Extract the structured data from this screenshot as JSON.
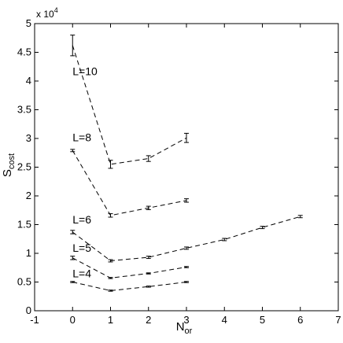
{
  "chart_data": {
    "type": "line",
    "title": "",
    "xlabel": {
      "main": "N",
      "sub": "or"
    },
    "ylabel": {
      "main": "S",
      "sub": "cost"
    },
    "y_multiplier": {
      "base": "x 10",
      "exp": "4"
    },
    "xlim": [
      -1,
      7
    ],
    "ylim": [
      0,
      5
    ],
    "xticks": [
      -1,
      0,
      1,
      2,
      3,
      4,
      5,
      6,
      7
    ],
    "yticks": [
      0,
      0.5,
      1,
      1.5,
      2,
      2.5,
      3,
      3.5,
      4,
      4.5,
      5
    ],
    "ytick_labels": [
      "0",
      "0.5",
      "1",
      "1.5",
      "2",
      "2.5",
      "3",
      "3.5",
      "4",
      "4.5",
      "5"
    ],
    "grid": false,
    "series": [
      {
        "name": "L=10",
        "x": [
          0,
          1,
          2,
          3
        ],
        "y": [
          4.62,
          2.55,
          2.65,
          3.01
        ],
        "err": [
          0.18,
          0.07,
          0.05,
          0.08
        ]
      },
      {
        "name": "L=8",
        "x": [
          0,
          1,
          2,
          3
        ],
        "y": [
          2.79,
          1.66,
          1.79,
          1.92
        ],
        "err": [
          0.02,
          0.03,
          0.03,
          0.03
        ]
      },
      {
        "name": "L=6",
        "x": [
          0,
          1,
          2,
          3,
          4,
          5,
          6
        ],
        "y": [
          1.37,
          0.87,
          0.93,
          1.09,
          1.24,
          1.45,
          1.64
        ],
        "err": [
          0.03,
          0.02,
          0.02,
          0.02,
          0.02,
          0.02,
          0.02
        ]
      },
      {
        "name": "L=5",
        "x": [
          0,
          1,
          2,
          3
        ],
        "y": [
          0.92,
          0.57,
          0.65,
          0.76
        ],
        "err": [
          0.03,
          0.01,
          0.01,
          0.01
        ]
      },
      {
        "name": "L=4",
        "x": [
          0,
          1,
          2,
          3
        ],
        "y": [
          0.5,
          0.35,
          0.42,
          0.5
        ],
        "err": [
          0.01,
          0.01,
          0.01,
          0.01
        ]
      }
    ],
    "annotations": [
      {
        "text": "L=10",
        "x": 0.0,
        "y": 4.1
      },
      {
        "text": "L=8",
        "x": 0.0,
        "y": 2.95
      },
      {
        "text": "L=6",
        "x": 0.0,
        "y": 1.52
      },
      {
        "text": "L=5",
        "x": 0.0,
        "y": 1.03
      },
      {
        "text": "L=4",
        "x": 0.0,
        "y": 0.58
      }
    ]
  }
}
